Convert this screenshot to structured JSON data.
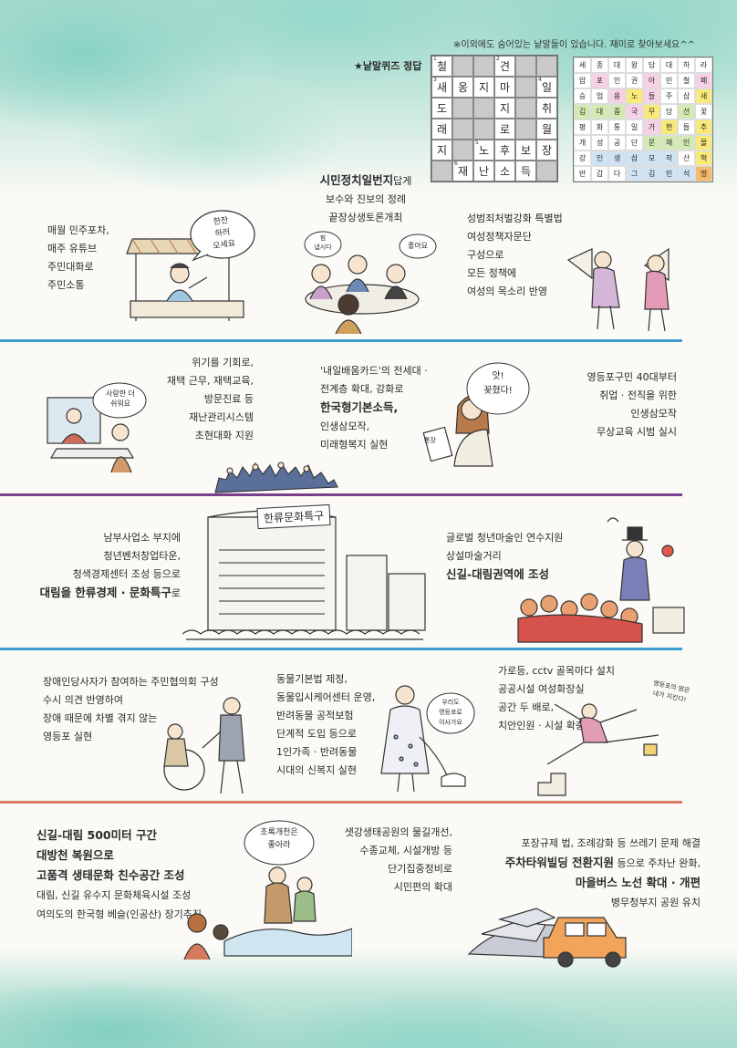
{
  "header": {
    "note": "※이외에도 숨어있는 낱말들이 있습니다. 재미로 찾아보세요^^",
    "quiz_title": "★낱말퀴즈 정답"
  },
  "crossword": [
    [
      {
        "n": "1",
        "t": "철"
      },
      {
        "b": 1
      },
      {
        "b": 1
      },
      {
        "n": "2",
        "t": "견"
      },
      {
        "b": 1
      },
      {
        "b": 1
      }
    ],
    [
      {
        "n": "3",
        "t": "새"
      },
      {
        "t": "옹"
      },
      {
        "t": "지"
      },
      {
        "t": "마"
      },
      {
        "b": 1
      },
      {
        "n": "4",
        "t": "일"
      }
    ],
    [
      {
        "t": "도"
      },
      {
        "b": 1
      },
      {
        "b": 1
      },
      {
        "t": "지"
      },
      {
        "b": 1
      },
      {
        "t": "취"
      }
    ],
    [
      {
        "t": "래"
      },
      {
        "b": 1
      },
      {
        "b": 1
      },
      {
        "t": "로"
      },
      {
        "b": 1
      },
      {
        "t": "월"
      }
    ],
    [
      {
        "t": "지"
      },
      {
        "b": 1
      },
      {
        "n": "5",
        "t": "노"
      },
      {
        "t": "후"
      },
      {
        "t": "보"
      },
      {
        "t": "장"
      }
    ],
    [
      {
        "b": 1
      },
      {
        "n": "6",
        "t": "재"
      },
      {
        "t": "난"
      },
      {
        "t": "소"
      },
      {
        "t": "득"
      },
      {
        "b": 1
      }
    ]
  ],
  "wordsearch": [
    [
      {
        "t": "세"
      },
      {
        "t": "종"
      },
      {
        "t": "대"
      },
      {
        "t": "왕"
      },
      {
        "t": "담"
      },
      {
        "t": "대"
      },
      {
        "t": "하"
      },
      {
        "t": "라"
      }
    ],
    [
      {
        "t": "압"
      },
      {
        "t": "포",
        "c": "#f7d1e6"
      },
      {
        "t": "인"
      },
      {
        "t": "권"
      },
      {
        "t": "아",
        "c": "#f7d1e6"
      },
      {
        "t": "민"
      },
      {
        "t": "철"
      },
      {
        "t": "폐",
        "c": "#f7d1e6"
      }
    ],
    [
      {
        "t": "승"
      },
      {
        "t": "업"
      },
      {
        "t": "용",
        "c": "#f7d1e6"
      },
      {
        "t": "노",
        "c": "#f9ea7a"
      },
      {
        "t": "들",
        "c": "#f7d1e6"
      },
      {
        "t": "주"
      },
      {
        "t": "삼"
      },
      {
        "t": "새",
        "c": "#f9ea7a"
      }
    ],
    [
      {
        "t": "김",
        "c": "#d3ebb3"
      },
      {
        "t": "대",
        "c": "#d3ebb3"
      },
      {
        "t": "중",
        "c": "#d3ebb3"
      },
      {
        "t": "국",
        "c": "#f7d1e6"
      },
      {
        "t": "무",
        "c": "#f9ea7a"
      },
      {
        "t": "당"
      },
      {
        "t": "선",
        "c": "#d3ebb3"
      },
      {
        "t": "꽃"
      }
    ],
    [
      {
        "t": "평"
      },
      {
        "t": "화"
      },
      {
        "t": "통"
      },
      {
        "t": "일"
      },
      {
        "t": "가",
        "c": "#f7d1e6"
      },
      {
        "t": "현",
        "c": "#f9ea7a"
      },
      {
        "t": "들"
      },
      {
        "t": "추",
        "c": "#f9ea7a"
      }
    ],
    [
      {
        "t": "개"
      },
      {
        "t": "성"
      },
      {
        "t": "공"
      },
      {
        "t": "단"
      },
      {
        "t": "문",
        "c": "#d3ebb3"
      },
      {
        "t": "재",
        "c": "#d3ebb3"
      },
      {
        "t": "인",
        "c": "#d3ebb3"
      },
      {
        "t": "몰",
        "c": "#f9ea7a"
      }
    ],
    [
      {
        "t": "강"
      },
      {
        "t": "인",
        "c": "#cfe3f3"
      },
      {
        "t": "생",
        "c": "#cfe3f3"
      },
      {
        "t": "삼",
        "c": "#cfe3f3"
      },
      {
        "t": "모",
        "c": "#cfe3f3"
      },
      {
        "t": "작",
        "c": "#cfe3f3"
      },
      {
        "t": "산"
      },
      {
        "t": "혁",
        "c": "#f9ea7a"
      }
    ],
    [
      {
        "t": "반"
      },
      {
        "t": "갑"
      },
      {
        "t": "다"
      },
      {
        "t": "그",
        "c": "#cfe3f3"
      },
      {
        "t": "김",
        "c": "#cfe3f3"
      },
      {
        "t": "민",
        "c": "#cfe3f3"
      },
      {
        "t": "석",
        "c": "#cfe3f3"
      },
      {
        "t": "명",
        "c": "#f4b96a"
      }
    ]
  ],
  "sec1": {
    "left": [
      "매월 민주포차,",
      "매주 유튜브",
      "주민대화로",
      "주민소통"
    ],
    "center_bold": "시민정치일번지",
    "center_tail": "답게",
    "center": [
      "보수와 진보의 정례",
      "끝장상생토론개최"
    ],
    "right": [
      "성범죄처벌강화 특별법",
      "여성정책자문단",
      "구성으로",
      "모든 정책에",
      "여성의 목소리 반영"
    ],
    "bubble1": "한잔\n하러\n오세요",
    "bubble2": "힘\n냅시다",
    "bubble3": "좋아요"
  },
  "sec2": {
    "left": [
      "위기를 기회로,",
      "재택 근무, 재택교육,",
      "방문진료 등",
      "재난관리시스템",
      "초현대화 지원"
    ],
    "center1": "'내일배움카드'의 전세대 ·",
    "center2": "전계층 확대, 강화로",
    "center_bold": "한국형기본소득,",
    "center3": "인생삼모작,",
    "center4": "미래형복지 실현",
    "right": [
      "영등포구민 40대부터",
      "취업 · 전직을 위한",
      "인생삼모작",
      "무상교육 시범 실시"
    ],
    "bubble1": "사랑한 더\n쉬워요",
    "bubble2": "앗!\n꽂혔다!",
    "card": "통장"
  },
  "sec3": {
    "left": [
      "남부사업소 부지에",
      "청년벤처창업타운,",
      "청색경제센터 조성 등으로"
    ],
    "left_bold": "대림을 한류경제 · 문화특구",
    "left_tail": "로",
    "sign": "한류문화특구",
    "right": [
      "글로벌 청년마술인 연수지원",
      "상설마술거리"
    ],
    "right_bold": "신길-대림권역에 조성"
  },
  "sec4": {
    "left": [
      "장애인당사자가 참여하는 주민협의회 구성",
      "수시 의견 반영하여",
      "장애 때문에 차별 겪지 않는",
      "영등포 실현"
    ],
    "center": [
      "동물기본법 제정,",
      "동물입시케어센터 운영,",
      "반려동물 공적보험",
      "단계적 도입 등으로",
      "1인가족 · 반려동물",
      "시대의 신복지 실현"
    ],
    "right": [
      "가로등, cctv 골목마다 설치",
      "공공시설 여성화장실",
      "공간 두 배로,",
      "치안인원 · 시설 확충"
    ],
    "bubble1": "우리도\n영등포로\n이사가요",
    "bubble2": "영등포의 밤은\n내가 지킨다!"
  },
  "sec5": {
    "left_bold": [
      "신길-대림 500미터 구간",
      "대방천 복원으로",
      "고품격 생태문화 친수공간 조성"
    ],
    "left": [
      "대림, 신길 유수지 문화체육시설 조성",
      "여의도의 한국형 베슬(인공산) 장기추진"
    ],
    "center": [
      "샛강생태공원의 물길개선,",
      "수종교체, 시설개방 등",
      "단기집중정비로",
      "시민편의 확대"
    ],
    "right1": "포장규제 법, 조례강화 등 쓰레기 문제 해결",
    "right2_bold": "주차타워빌딩 전환지원",
    "right2_tail": " 등으로 주차난 완화,",
    "right3_bold": "마을버스 노선 확대 · 개편",
    "right4": "병무청부지 공원 유치",
    "bubble": "초록개천은\n좋아라"
  },
  "colors": {
    "line1": "#3b9ed0",
    "line2": "#7a3f8d",
    "line3": "#3b9ed0",
    "line4": "#d97a66",
    "wash": "#a9dccf"
  }
}
